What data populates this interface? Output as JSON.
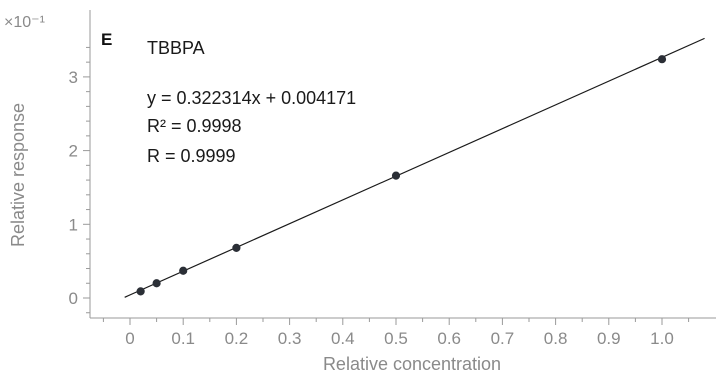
{
  "chart_data": {
    "type": "scatter",
    "panel_label": "E",
    "y_multiplier": "×10⁻¹",
    "xlabel": "Relative concentration",
    "ylabel": "Relative response",
    "xlim": [
      -0.07,
      1.09
    ],
    "ylim": [
      -0.2,
      3.6
    ],
    "x_ticks": [
      "0",
      "0.1",
      "0.2",
      "0.3",
      "0.4",
      "0.5",
      "0.6",
      "0.7",
      "0.8",
      "0.9",
      "1.0"
    ],
    "x_tick_values": [
      0,
      0.1,
      0.2,
      0.3,
      0.4,
      0.5,
      0.6,
      0.7,
      0.8,
      0.9,
      1.0
    ],
    "y_ticks": [
      "0",
      "1",
      "2",
      "3"
    ],
    "y_tick_values": [
      0,
      1,
      2,
      3
    ],
    "grid": false,
    "series": [
      {
        "x": [
          0.02,
          0.05,
          0.1,
          0.2,
          0.5,
          1.0
        ],
        "y": [
          0.09,
          0.2,
          0.37,
          0.68,
          1.66,
          3.24
        ]
      }
    ],
    "fit": {
      "slope": 0.322314,
      "intercept": 0.004171,
      "x_range": [
        -0.01,
        1.08
      ]
    },
    "annotations": {
      "compound": "TBBPA",
      "equation": "y = 0.322314x  + 0.004171",
      "r2": "R² = 0.9998",
      "r": "R = 0.9999"
    }
  }
}
